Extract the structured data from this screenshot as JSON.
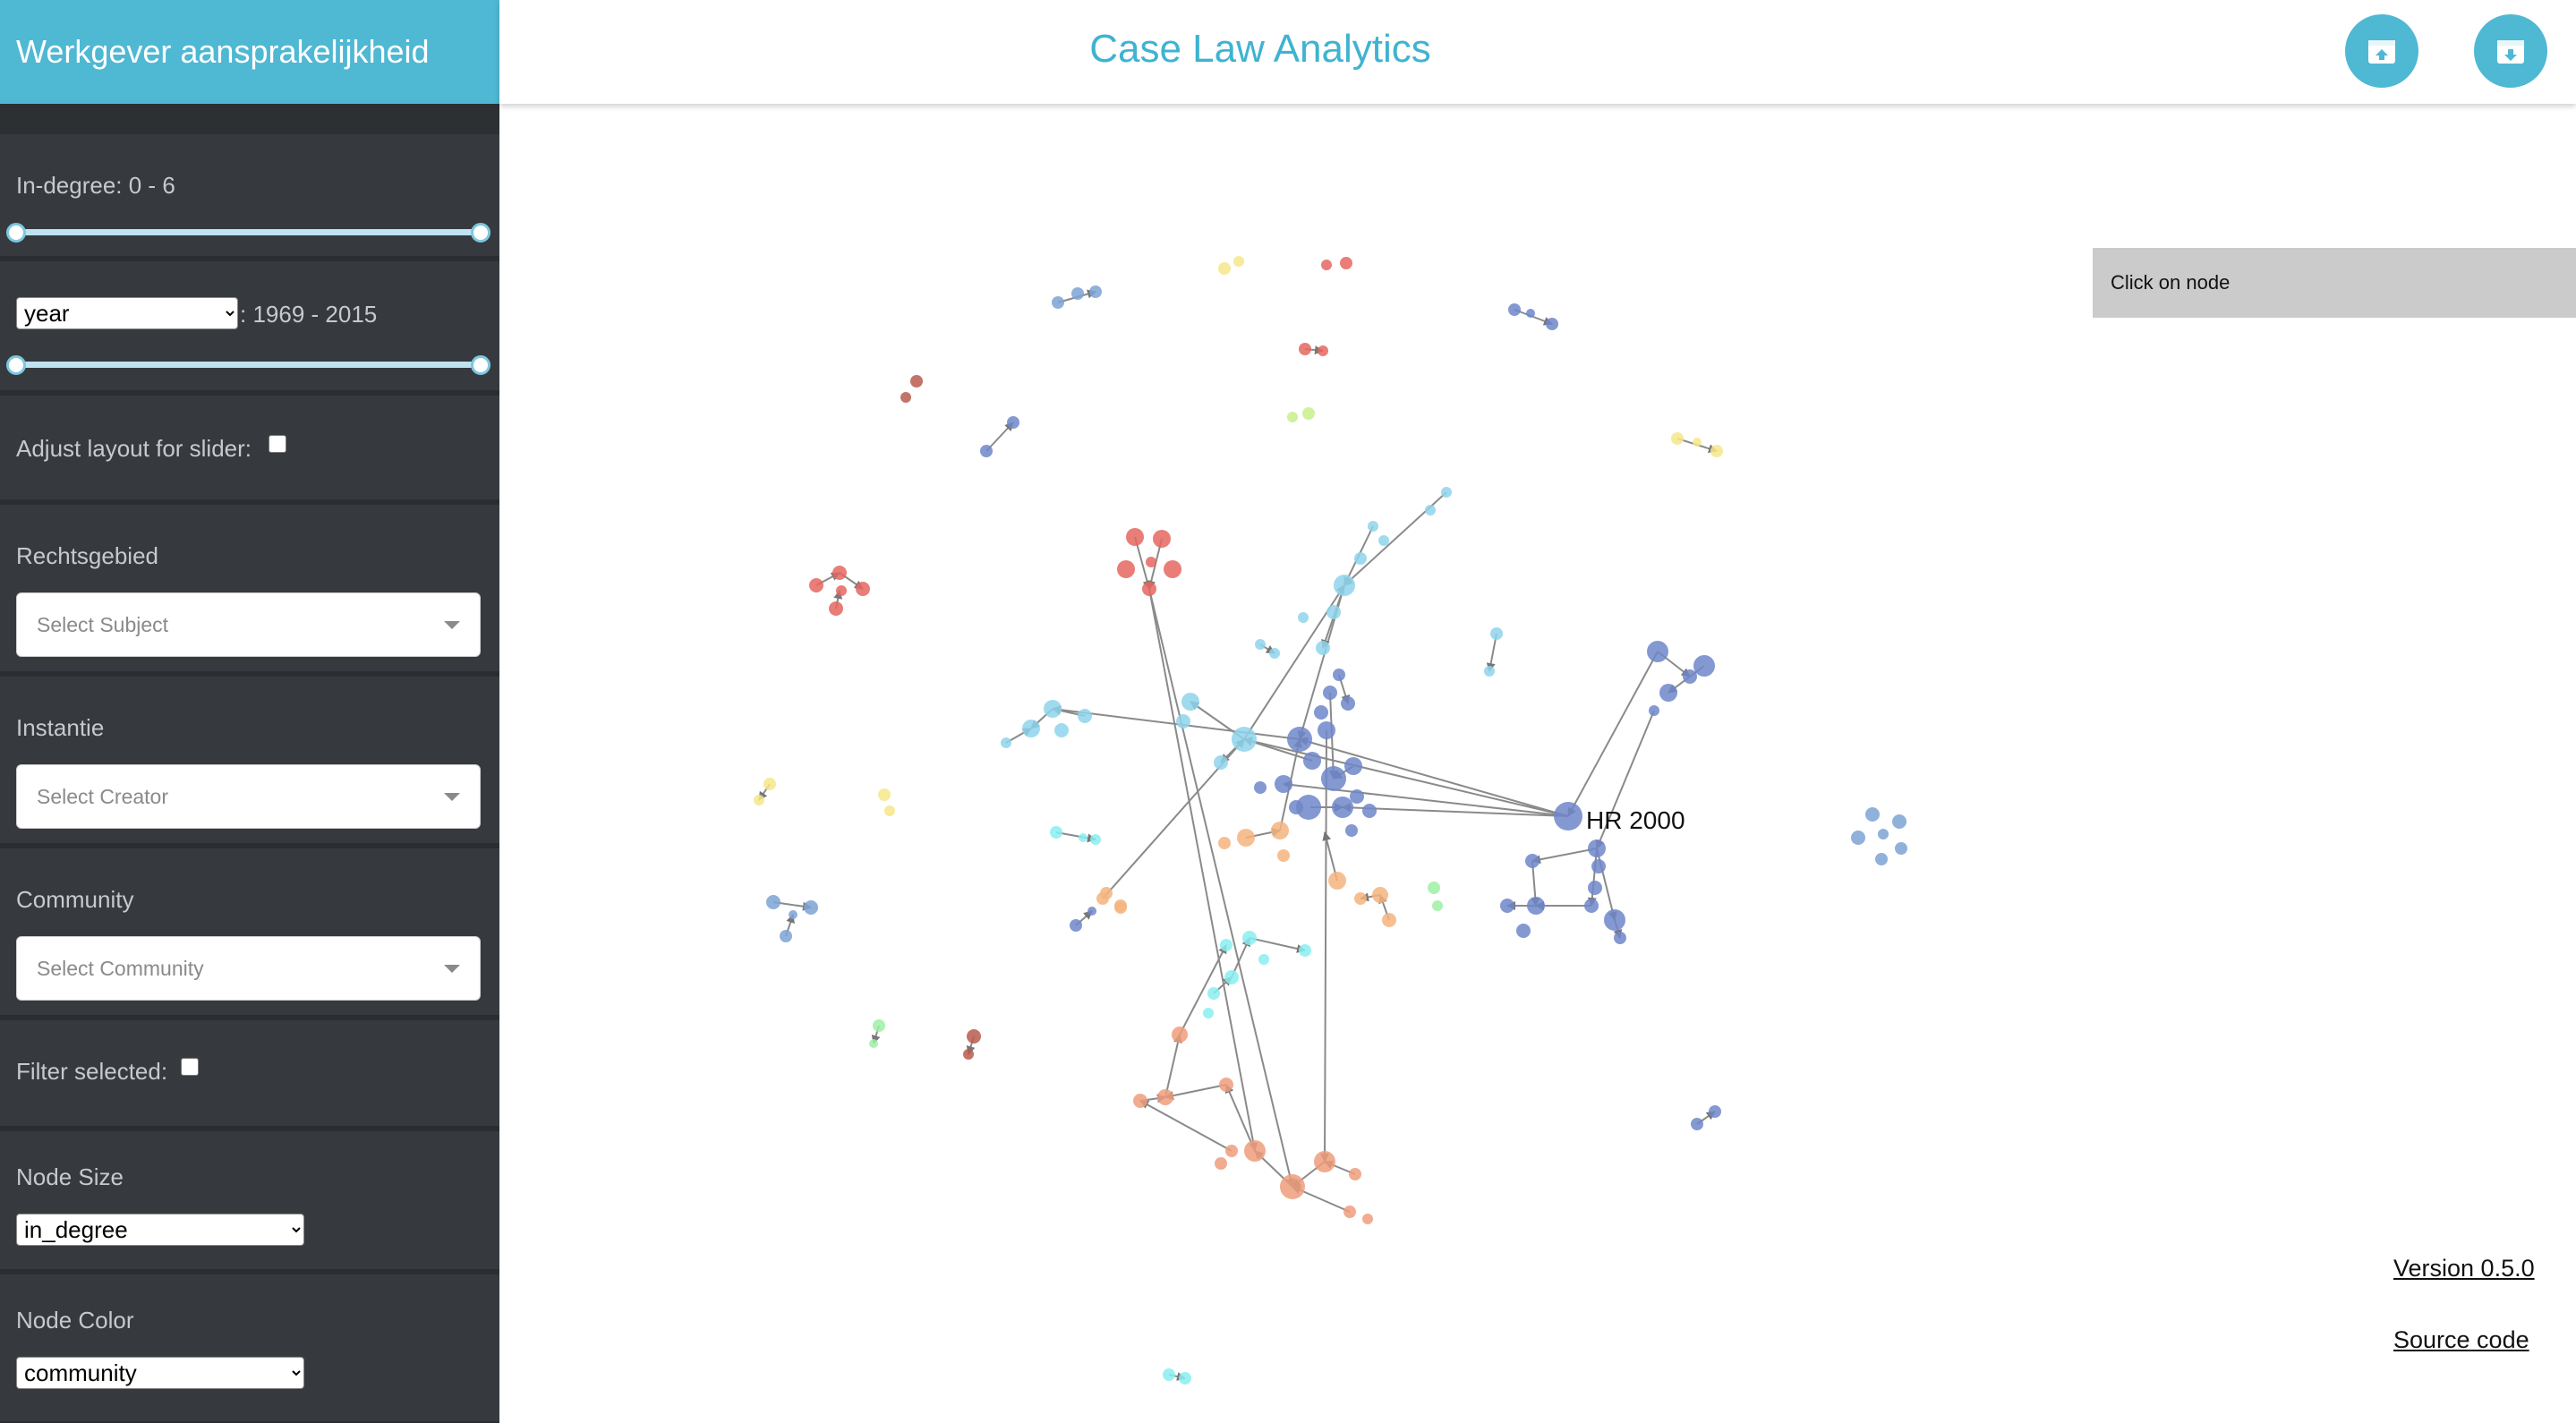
{
  "sidebar_title": "Werkgever aansprakelijkheid",
  "app_title": "Case Law Analytics",
  "header_buttons": [
    {
      "name": "upload-button",
      "icon": "box-upload-icon"
    },
    {
      "name": "download-button",
      "icon": "box-download-icon"
    }
  ],
  "filters": {
    "indegree": {
      "label": "In-degree: 0 - 6",
      "min": 0,
      "max": 6,
      "low": 0,
      "high": 6
    },
    "year": {
      "select_value": "year",
      "range_label": ": 1969 - 2015",
      "min": 1969,
      "max": 2015,
      "low": 1969,
      "high": 2015
    },
    "adjust_layout_label": "Adjust layout for slider:",
    "rechtsgebied": {
      "label": "Rechtsgebied",
      "placeholder": "Select Subject"
    },
    "instantie": {
      "label": "Instantie",
      "placeholder": "Select Creator"
    },
    "community": {
      "label": "Community",
      "placeholder": "Select Community"
    },
    "filter_selected_label": "Filter selected:",
    "node_size": {
      "label": "Node Size",
      "value": "in_degree"
    },
    "node_color": {
      "label": "Node Color",
      "value": "community"
    }
  },
  "graph": {
    "highlight_label": "HR 2000",
    "colors": {
      "blue": "#6f86c9",
      "lightblue": "#8fd3ec",
      "red": "#e5665f",
      "salmon": "#ef9e7c",
      "orange": "#f5b47f",
      "cyan": "#8aeef0",
      "yellow": "#f6e68a",
      "lime": "#c7f08a",
      "green": "#9ef0a4",
      "brown": "#b85c4e",
      "steel": "#7ba3d3"
    }
  },
  "info_box": {
    "text": "Click on node"
  },
  "footer": {
    "version": "Version 0.5.0",
    "source": "Source code"
  }
}
